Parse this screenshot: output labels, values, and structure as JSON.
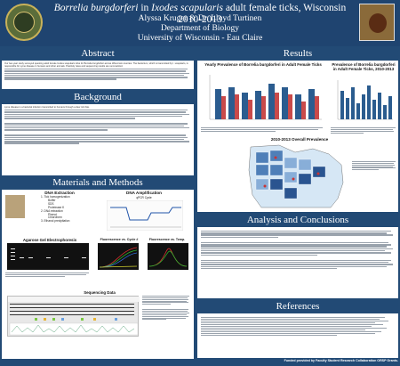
{
  "header": {
    "title_species": "Borrelia burgdorferi",
    "title_mid": " in ",
    "title_host": "Ixodes scapularis",
    "title_rest": " adult female ticks, Wisconsin 2010-2013",
    "authors": "Alyssa Kruger & Dr. Lloyd Turtinen",
    "department": "Department of Biology",
    "university": "University of Wisconsin - Eau Claire"
  },
  "sections": {
    "abstract": "Abstract",
    "background": "Background",
    "materials": "Materials and Methods",
    "results": "Results",
    "analysis": "Analysis and Conclusions",
    "references": "References"
  },
  "abstract_text": "Our two-year study surveyed questing adult female Ixodes scapularis ticks for Borrelia burgdorferi across Wisconsin counties. The bacterium, which is transmitted by I. scapularis, is responsible for Lyme disease in humans and other animals. Positivity rates and sequencing results are summarized.",
  "background_text": "Lyme disease is a bacterial infection transmitted to humans through a deer tick bite.",
  "methods": {
    "dna_extraction_title": "DNA Extraction",
    "dna_extraction_steps": [
      "1. Tick homogenization",
      "Buffer",
      "SDS",
      "Proteinase K",
      "2. DNA extraction",
      "Phenol",
      "Chloroform",
      "3. Ethanol precipitation"
    ],
    "dna_amplification_title": "DNA Amplification",
    "qpcr_cycle": "qPCR Cycle",
    "gel_title": "Agarose Gel Electrophoresis",
    "fluor_cycle_title": "Fluorescence vs. Cycle #",
    "fluor_temp_title": "Fluorescence vs. Temp.",
    "sequencing_title": "Sequencing Data"
  },
  "results": {
    "yearly_title": "Yearly Prevalence of Borrelia burgdorferi in Adult Female Ticks",
    "county_title": "Prevalence of Borrelia burgdorferi in Adult Female Ticks, 2010-2013",
    "map_title": "2010-2013 Overall Prevalence"
  },
  "funded": "Funded provided by Faculty Student Research Collaboration ORSP Grants."
}
